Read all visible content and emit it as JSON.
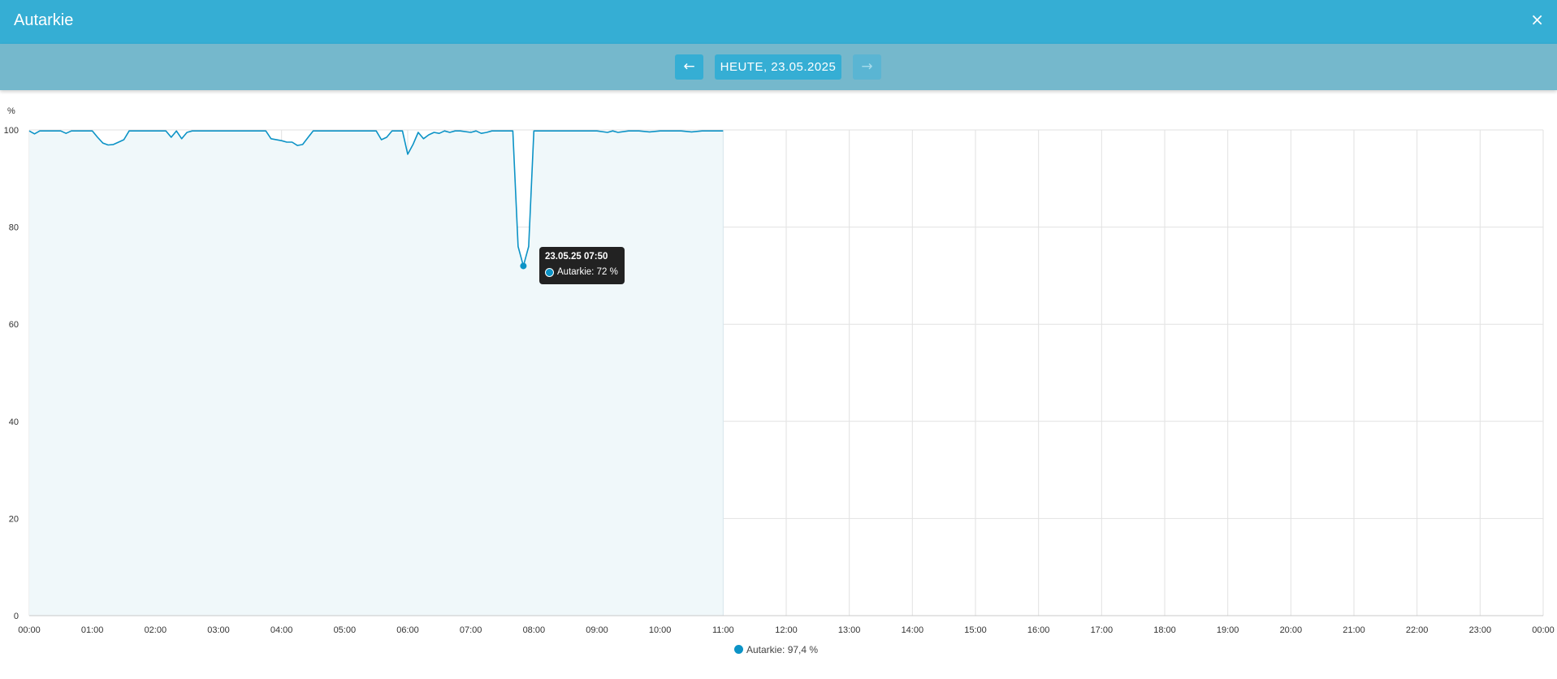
{
  "window": {
    "title": "Autarkie",
    "close_icon": "×"
  },
  "nav": {
    "prev_icon": "←",
    "date_label": "HEUTE, 23.05.2025",
    "next_icon": "→"
  },
  "tooltip": {
    "title": "23.05.25 07:50",
    "label": "Autarkie: 72 %"
  },
  "legend": {
    "label": "Autarkie: 97,4 %"
  },
  "colors": {
    "accent": "#35aed4",
    "navbar": "#75b8cc",
    "series": "#0c93c6",
    "fill": "#f0f8fa"
  },
  "chart_data": {
    "type": "area",
    "title": "",
    "xlabel": "",
    "ylabel": "%",
    "ylim": [
      0,
      100
    ],
    "yticks": [
      "0",
      "20",
      "40",
      "60",
      "80",
      "100"
    ],
    "xticks": [
      "00:00",
      "01:00",
      "02:00",
      "03:00",
      "04:00",
      "05:00",
      "06:00",
      "07:00",
      "08:00",
      "09:00",
      "10:00",
      "11:00",
      "12:00",
      "13:00",
      "14:00",
      "15:00",
      "16:00",
      "17:00",
      "18:00",
      "19:00",
      "20:00",
      "21:00",
      "22:00",
      "23:00",
      "00:00"
    ],
    "grid": true,
    "legend_position": "bottom",
    "series": [
      {
        "name": "Autarkie",
        "x": [
          "00:00",
          "00:05",
          "00:10",
          "00:20",
          "00:30",
          "00:35",
          "00:40",
          "00:50",
          "01:00",
          "01:05",
          "01:10",
          "01:15",
          "01:20",
          "01:25",
          "01:30",
          "01:35",
          "01:40",
          "01:50",
          "02:00",
          "02:10",
          "02:15",
          "02:20",
          "02:25",
          "02:30",
          "02:35",
          "02:40",
          "02:50",
          "03:00",
          "03:30",
          "03:45",
          "03:50",
          "04:00",
          "04:05",
          "04:10",
          "04:15",
          "04:20",
          "04:30",
          "05:00",
          "05:30",
          "05:35",
          "05:40",
          "05:45",
          "05:50",
          "05:55",
          "06:00",
          "06:05",
          "06:10",
          "06:15",
          "06:20",
          "06:25",
          "06:30",
          "06:35",
          "06:40",
          "06:45",
          "06:50",
          "07:00",
          "07:05",
          "07:10",
          "07:15",
          "07:20",
          "07:30",
          "07:40",
          "07:45",
          "07:50",
          "07:55",
          "08:00",
          "08:30",
          "09:00",
          "09:10",
          "09:15",
          "09:20",
          "09:30",
          "09:40",
          "09:50",
          "10:00",
          "10:10",
          "10:20",
          "10:30",
          "10:40",
          "10:50",
          "11:00"
        ],
        "values": [
          99.8,
          99.2,
          99.8,
          99.8,
          99.8,
          99.3,
          99.8,
          99.8,
          99.8,
          98.5,
          97.3,
          96.9,
          97.0,
          97.5,
          98.0,
          99.8,
          99.8,
          99.8,
          99.8,
          99.8,
          98.5,
          99.8,
          98.2,
          99.5,
          99.8,
          99.8,
          99.8,
          99.8,
          99.8,
          99.8,
          98.2,
          97.8,
          97.5,
          97.5,
          96.8,
          97.0,
          99.8,
          99.8,
          99.8,
          98.0,
          98.5,
          99.8,
          99.8,
          99.8,
          95.0,
          97.0,
          99.5,
          98.2,
          99.0,
          99.5,
          99.3,
          99.8,
          99.5,
          99.8,
          99.8,
          99.5,
          99.8,
          99.3,
          99.5,
          99.8,
          99.8,
          99.8,
          76.0,
          72.0,
          76.0,
          99.8,
          99.8,
          99.8,
          99.5,
          99.8,
          99.5,
          99.8,
          99.8,
          99.6,
          99.8,
          99.8,
          99.8,
          99.6,
          99.8,
          99.8,
          99.8
        ]
      }
    ],
    "highlight": {
      "x": "07:50",
      "value": 72
    }
  }
}
